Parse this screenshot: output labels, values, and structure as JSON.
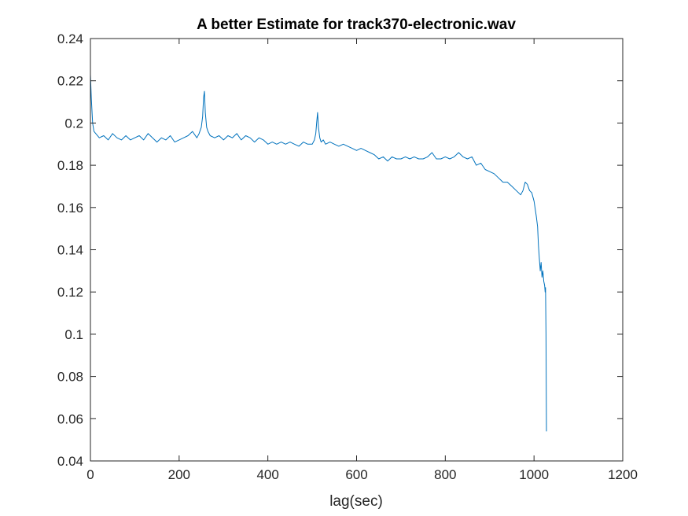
{
  "chart_data": {
    "type": "line",
    "title": "A better Estimate for track370-electronic.wav",
    "xlabel": "lag(sec)",
    "ylabel": "",
    "xlim": [
      0,
      1200
    ],
    "ylim": [
      0.04,
      0.24
    ],
    "xticks": [
      0,
      200,
      400,
      600,
      800,
      1000,
      1200
    ],
    "xtick_labels": [
      "0",
      "200",
      "400",
      "600",
      "800",
      "1000",
      "1200"
    ],
    "yticks": [
      0.04,
      0.06,
      0.08,
      0.1,
      0.12,
      0.14,
      0.16,
      0.18,
      0.2,
      0.22,
      0.24
    ],
    "ytick_labels": [
      "0.04",
      "0.06",
      "0.08",
      "0.1",
      "0.12",
      "0.14",
      "0.16",
      "0.18",
      "0.2",
      "0.22",
      "0.24"
    ],
    "grid": false,
    "box": true,
    "line_color": "#0072BD",
    "series": [
      {
        "x": [
          0,
          2,
          5,
          8,
          12,
          20,
          30,
          40,
          50,
          60,
          70,
          80,
          90,
          100,
          110,
          120,
          130,
          140,
          150,
          160,
          170,
          180,
          190,
          200,
          210,
          220,
          230,
          240,
          245,
          250,
          253,
          255,
          257,
          259,
          262,
          265,
          270,
          280,
          290,
          300,
          310,
          320,
          330,
          340,
          350,
          360,
          370,
          380,
          390,
          400,
          410,
          420,
          430,
          440,
          450,
          460,
          470,
          480,
          490,
          500,
          505,
          508,
          510,
          512,
          514,
          517,
          520,
          525,
          530,
          540,
          550,
          560,
          570,
          580,
          590,
          600,
          610,
          620,
          630,
          640,
          650,
          660,
          670,
          680,
          690,
          700,
          710,
          720,
          730,
          740,
          750,
          760,
          770,
          780,
          790,
          800,
          810,
          820,
          830,
          840,
          850,
          860,
          870,
          880,
          890,
          900,
          910,
          920,
          930,
          940,
          950,
          960,
          970,
          975,
          980,
          985,
          990,
          995,
          1000,
          1005,
          1008,
          1010,
          1012,
          1014,
          1016,
          1018,
          1020,
          1022,
          1024,
          1025,
          1026,
          1027,
          1028
        ],
        "y": [
          0.223,
          0.212,
          0.2,
          0.196,
          0.195,
          0.193,
          0.194,
          0.192,
          0.195,
          0.193,
          0.192,
          0.194,
          0.192,
          0.193,
          0.194,
          0.192,
          0.195,
          0.193,
          0.191,
          0.193,
          0.192,
          0.194,
          0.191,
          0.192,
          0.193,
          0.194,
          0.196,
          0.193,
          0.195,
          0.198,
          0.203,
          0.212,
          0.215,
          0.205,
          0.198,
          0.196,
          0.194,
          0.193,
          0.194,
          0.192,
          0.194,
          0.193,
          0.195,
          0.192,
          0.194,
          0.193,
          0.191,
          0.193,
          0.192,
          0.19,
          0.191,
          0.19,
          0.191,
          0.19,
          0.191,
          0.19,
          0.189,
          0.191,
          0.19,
          0.19,
          0.192,
          0.195,
          0.2,
          0.205,
          0.198,
          0.193,
          0.191,
          0.192,
          0.19,
          0.191,
          0.19,
          0.189,
          0.19,
          0.189,
          0.188,
          0.187,
          0.188,
          0.187,
          0.186,
          0.185,
          0.183,
          0.184,
          0.182,
          0.184,
          0.183,
          0.183,
          0.184,
          0.183,
          0.184,
          0.183,
          0.183,
          0.184,
          0.186,
          0.183,
          0.183,
          0.184,
          0.183,
          0.184,
          0.186,
          0.184,
          0.183,
          0.184,
          0.18,
          0.181,
          0.178,
          0.177,
          0.176,
          0.174,
          0.172,
          0.172,
          0.17,
          0.168,
          0.166,
          0.168,
          0.172,
          0.171,
          0.168,
          0.167,
          0.163,
          0.156,
          0.151,
          0.142,
          0.136,
          0.13,
          0.134,
          0.127,
          0.13,
          0.125,
          0.123,
          0.12,
          0.122,
          0.1,
          0.054
        ]
      }
    ]
  }
}
